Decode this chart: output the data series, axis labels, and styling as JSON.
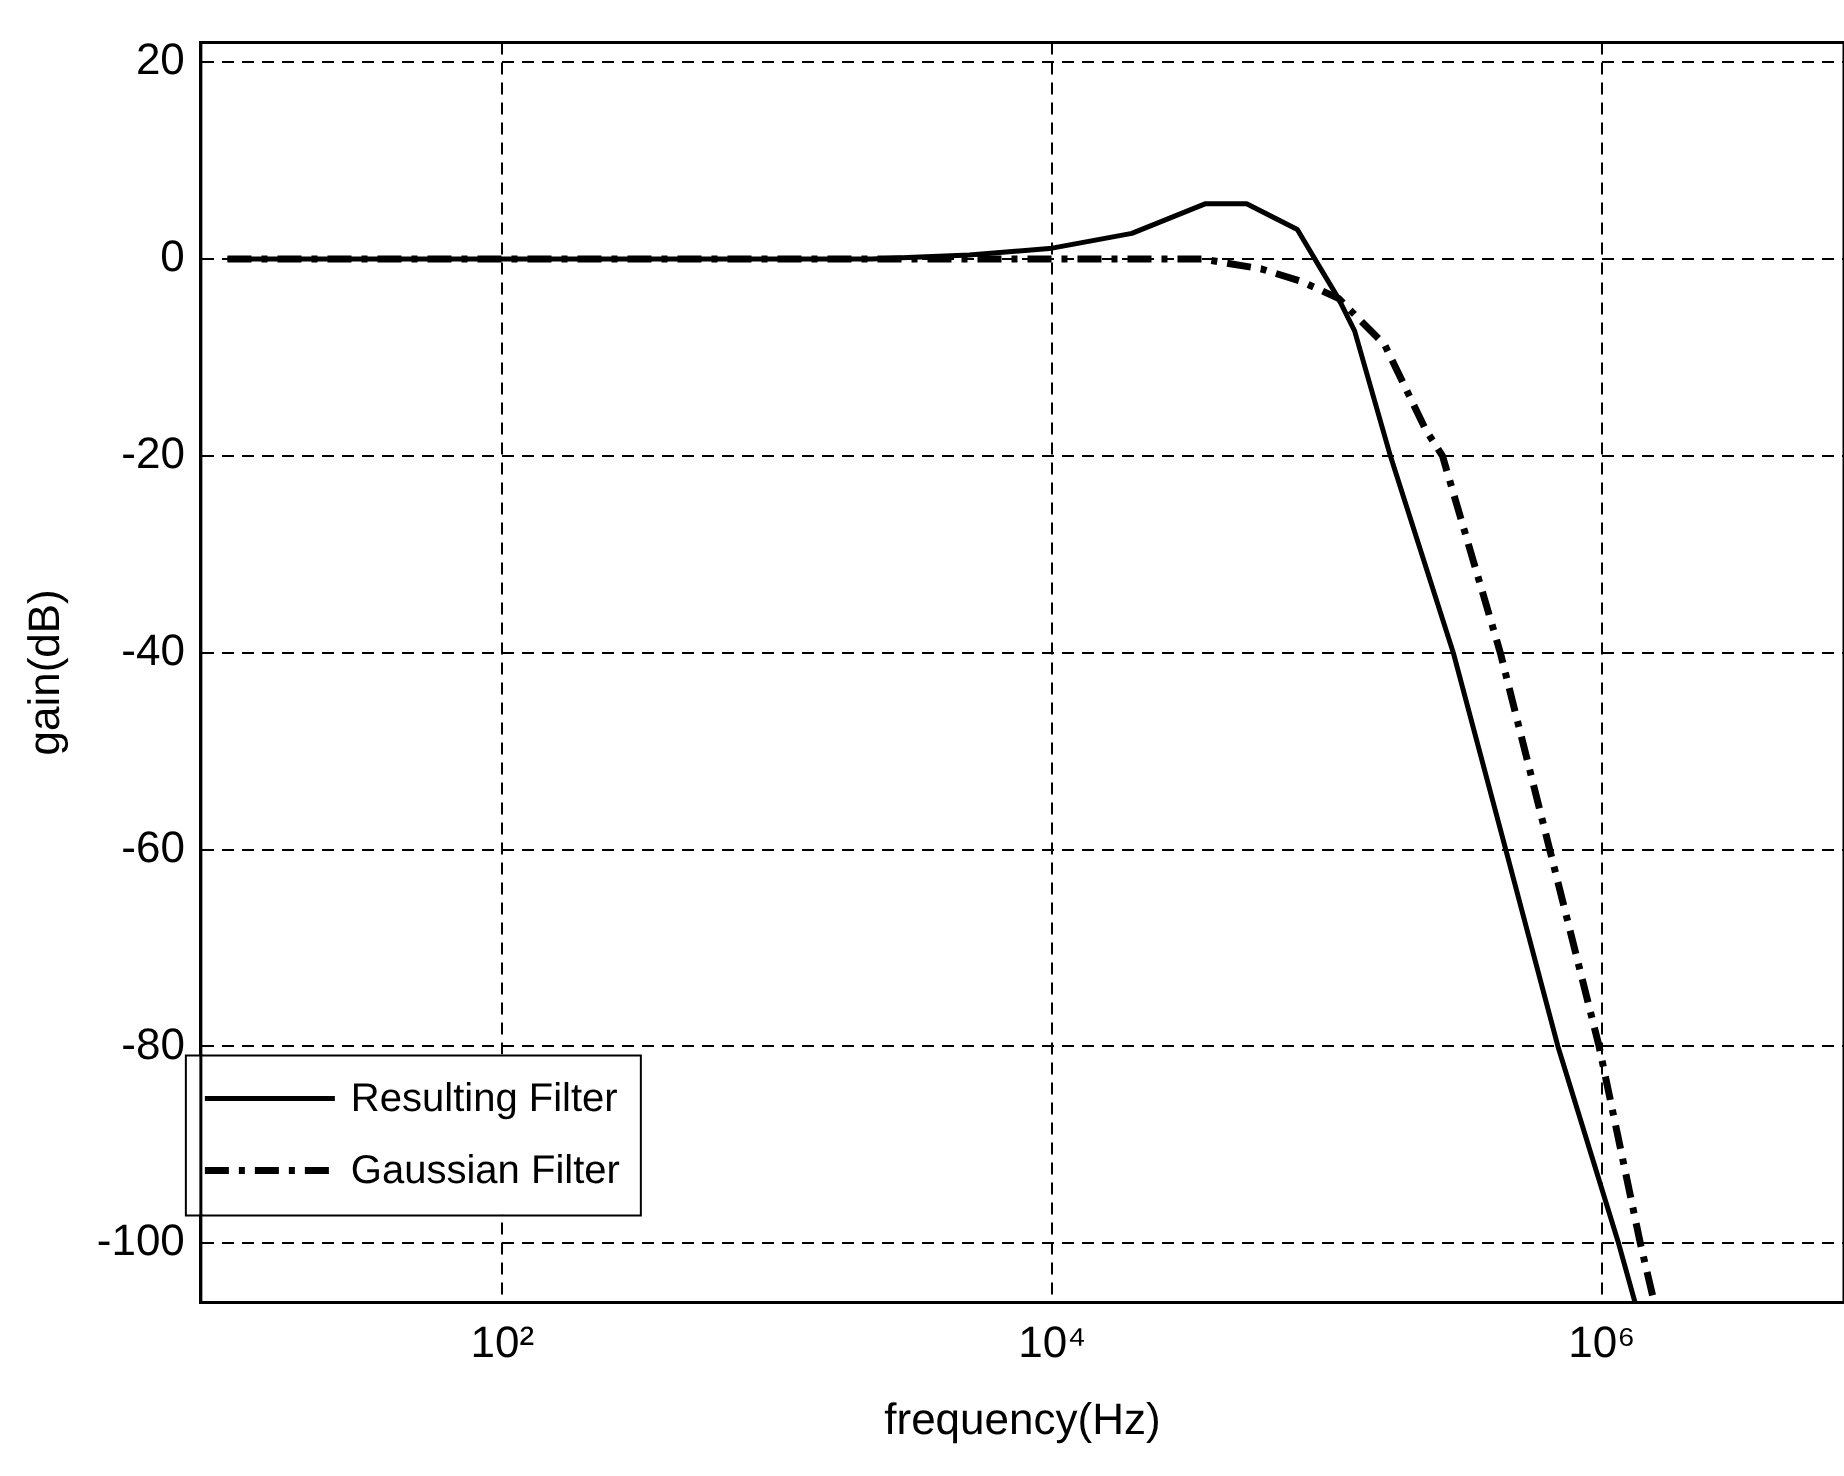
{
  "chart_data": {
    "type": "line",
    "xlabel": "frequency(Hz)",
    "ylabel": "gain(dB)",
    "log": "x",
    "xlim": [
      8,
      7600000
    ],
    "ylim": [
      -106,
      22
    ],
    "xticks": [
      {
        "value": 100,
        "label": "10²"
      },
      {
        "value": 10000,
        "label": "10⁴"
      },
      {
        "value": 1000000,
        "label": "10⁶"
      }
    ],
    "yticks": [
      -100,
      -80,
      -60,
      -40,
      -20,
      0,
      20
    ],
    "grid": true,
    "legend": "bottom left",
    "marker": "none",
    "series": [
      {
        "name": "Resulting Filter",
        "color": "#000000",
        "line_style": "solid",
        "x": [
          10,
          1000,
          2200,
          5000,
          10000,
          19500,
          36000,
          51000,
          78000,
          93000,
          110000,
          126000,
          170000,
          288000,
          447000,
          692000,
          1150000,
          1320000
        ],
        "values": [
          0,
          0,
          0,
          0.4,
          1.1,
          2.6,
          5.6,
          5.6,
          3.0,
          -0.6,
          -4.0,
          -7.3,
          -20,
          -40,
          -60,
          -80,
          -100,
          -106
        ]
      },
      {
        "name": "Gaussian Filter",
        "color": "#000000",
        "line_style": "dashdot",
        "x": [
          10,
          35000,
          57500,
          81000,
          110000,
          162000,
          229000,
          263000,
          427000,
          646000,
          977000,
          1380000,
          1550000
        ],
        "values": [
          0,
          0,
          -1.0,
          -2.3,
          -4.0,
          -8.7,
          -17.4,
          -20,
          -40,
          -60,
          -80,
          -100,
          -106
        ]
      }
    ]
  }
}
